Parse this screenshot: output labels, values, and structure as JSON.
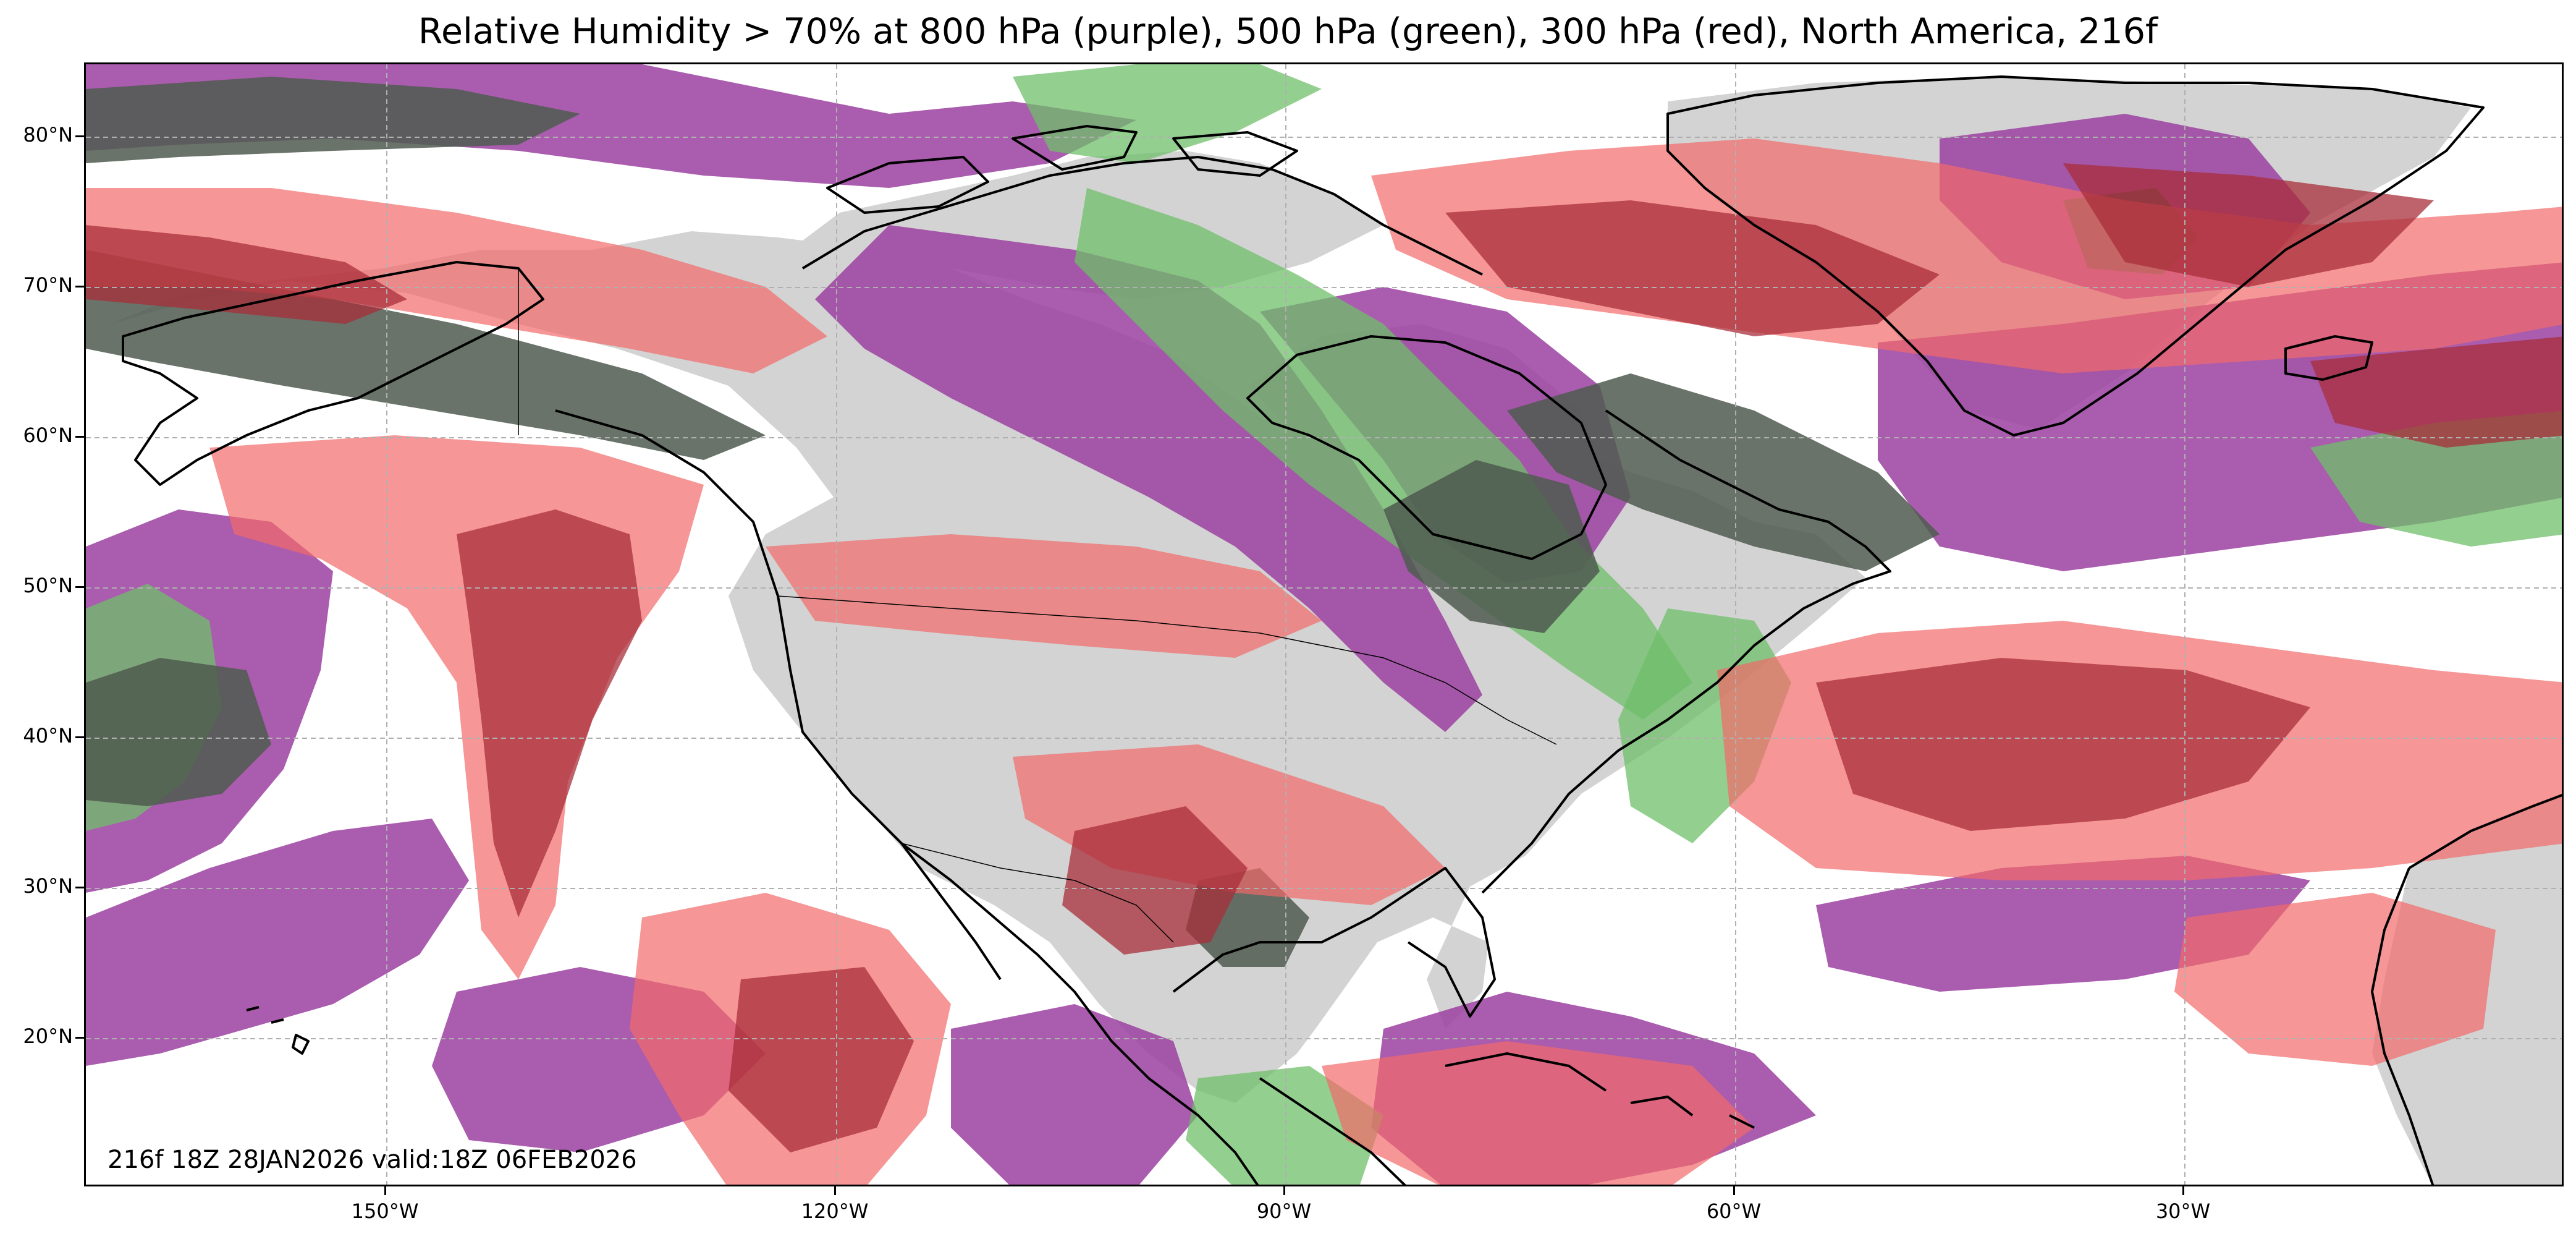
{
  "title": "Relative Humidity > 70% at 800 hPa (purple), 500 hPa (green), 300 hPa (red), North America, 216f",
  "annotation": "216f 18Z 28JAN2026 valid:18Z 06FEB2026",
  "lat_labels": [
    "80°N",
    "70°N",
    "60°N",
    "50°N",
    "40°N",
    "30°N",
    "20°N"
  ],
  "lon_labels": [
    "150°W",
    "120°W",
    "90°W",
    "60°W",
    "30°W"
  ],
  "colors": {
    "hpa800": "#9b3fa0",
    "hpa500": "#6fbf6a",
    "hpa300": "#f2696a",
    "land": "#d3d3d3",
    "coast": "#000000",
    "grid": "#b0b0b0"
  },
  "legend": {
    "hpa800": "purple",
    "hpa500": "green",
    "hpa300": "red"
  }
}
